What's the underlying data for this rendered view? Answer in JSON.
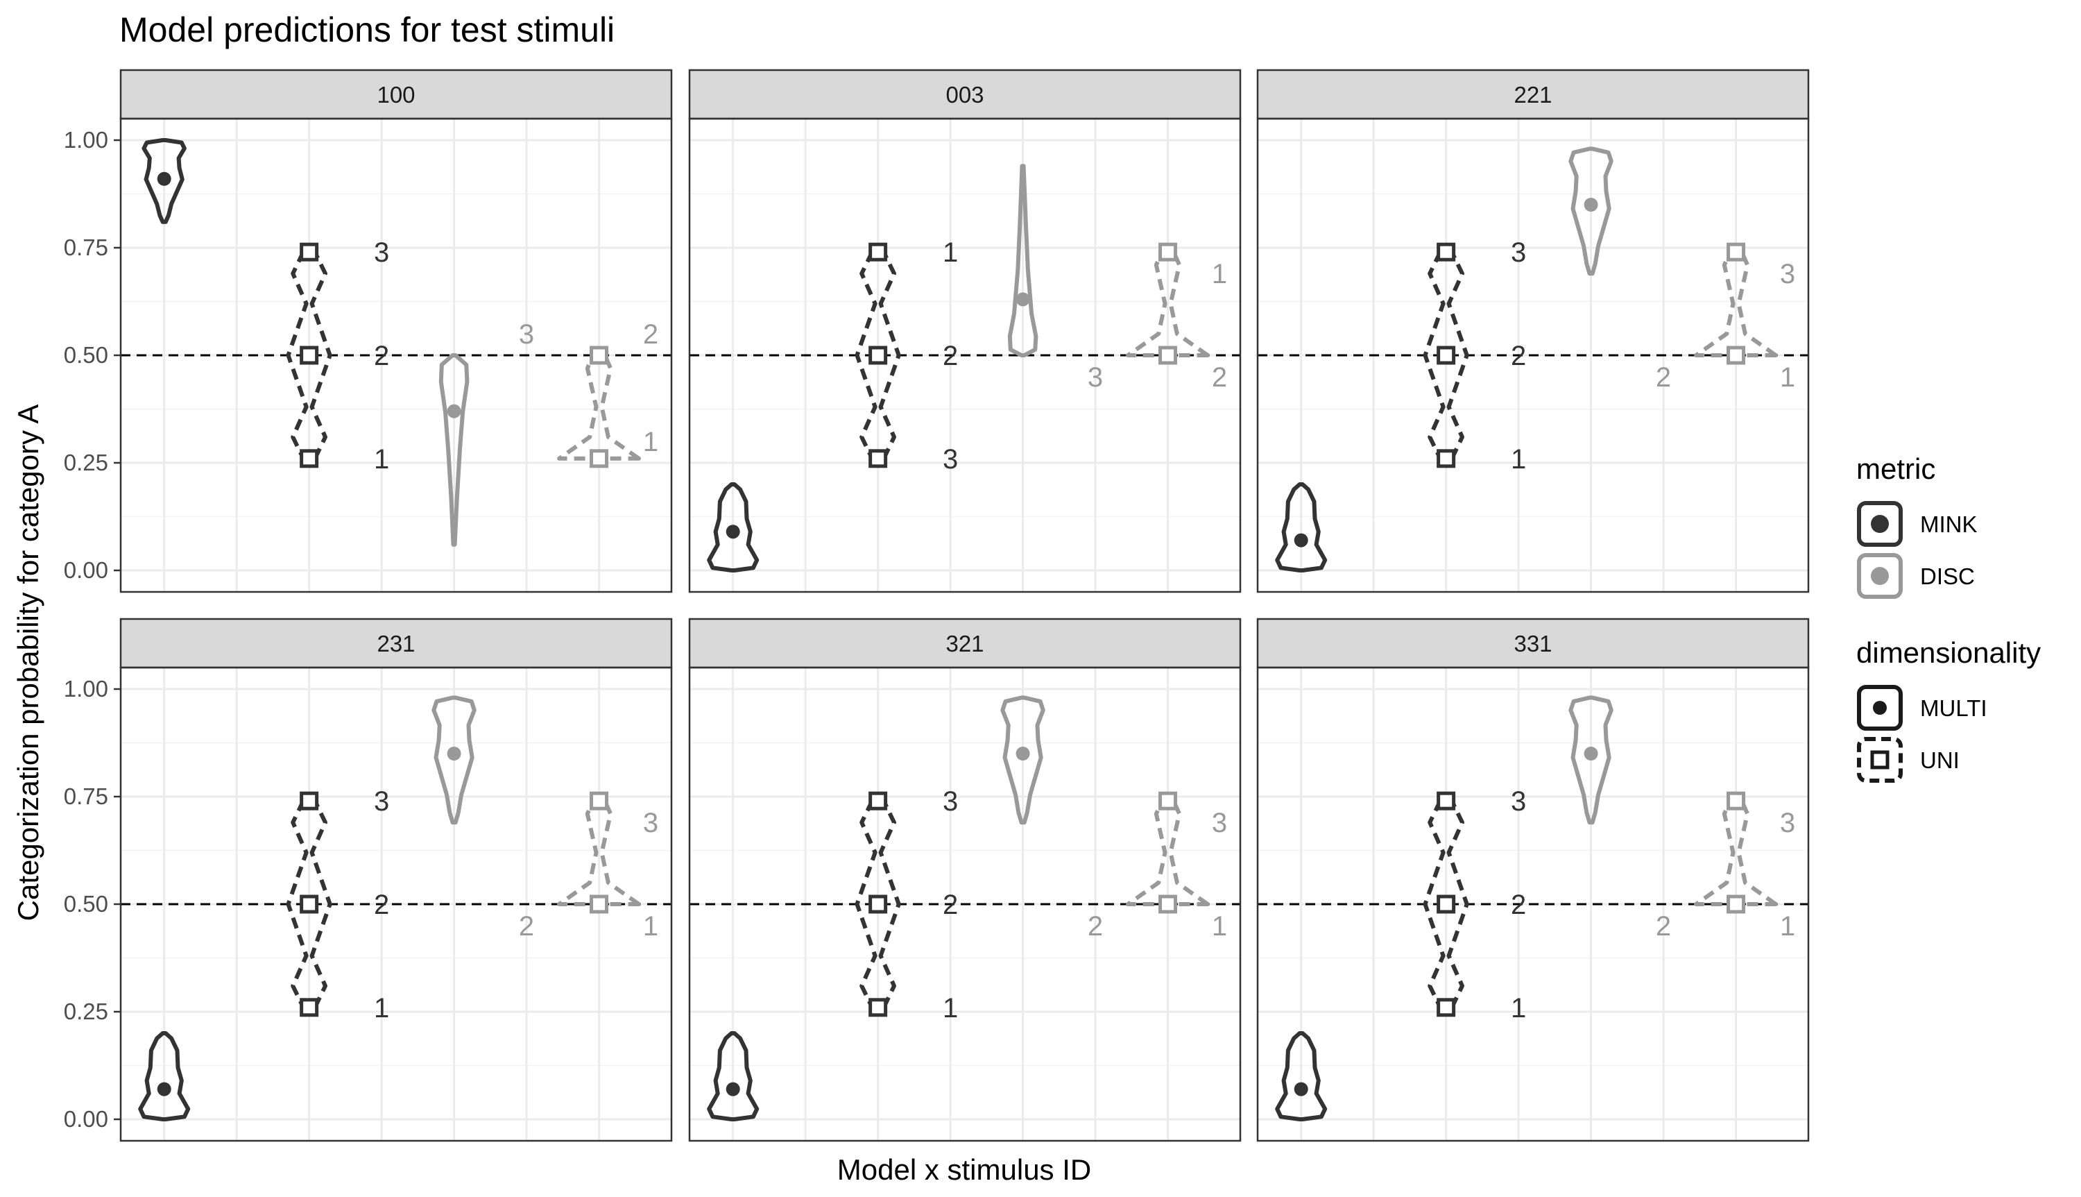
{
  "chart_data": {
    "type": "violin",
    "title": "Model predictions for test stimuli",
    "xlabel": "Model x stimulus ID",
    "ylabel": "Categorization probability for category A",
    "ylim": [
      -0.05,
      1.05
    ],
    "y_ticks": [
      0,
      0.25,
      0.5,
      0.75,
      1
    ],
    "y_tick_labels": [
      "0.00",
      "0.25",
      "0.50",
      "0.75",
      "1.00"
    ],
    "hline": 0.5,
    "grid": true,
    "legend_position": "right",
    "colors": {
      "MINK": "#333333",
      "DISC": "#999999"
    },
    "legends": [
      {
        "title": "metric",
        "entries": [
          {
            "label": "MINK",
            "color": "#333333"
          },
          {
            "label": "DISC",
            "color": "#999999"
          }
        ]
      },
      {
        "title": "dimensionality",
        "entries": [
          {
            "label": "MULTI",
            "linetype": "solid",
            "shape": "filled-circle"
          },
          {
            "label": "UNI",
            "linetype": "dashed",
            "shape": "open-square"
          }
        ]
      }
    ],
    "panels": [
      {
        "id": "100",
        "groups": [
          {
            "metric": "MINK",
            "dim": "MULTI",
            "x": 1,
            "mean": 0.91,
            "range": [
              0.81,
              1.0
            ],
            "shape": "top"
          },
          {
            "metric": "MINK",
            "dim": "UNI",
            "x": 3,
            "points": [
              0.26,
              0.5,
              0.74
            ],
            "labels": [
              "1",
              "2",
              "3"
            ]
          },
          {
            "metric": "DISC",
            "dim": "MULTI",
            "x": 5,
            "mean": 0.37,
            "range": [
              0.06,
              0.5
            ],
            "shape": "long-down"
          },
          {
            "metric": "DISC",
            "dim": "UNI",
            "x": 7,
            "points": [
              0.26,
              0.5
            ],
            "labels": [
              "1",
              "2",
              "3"
            ]
          }
        ]
      },
      {
        "id": "003",
        "groups": [
          {
            "metric": "MINK",
            "dim": "MULTI",
            "x": 1,
            "mean": 0.09,
            "range": [
              0.0,
              0.2
            ],
            "shape": "bottom"
          },
          {
            "metric": "MINK",
            "dim": "UNI",
            "x": 3,
            "points": [
              0.26,
              0.5,
              0.74
            ],
            "labels": [
              "3",
              "2",
              "1"
            ]
          },
          {
            "metric": "DISC",
            "dim": "MULTI",
            "x": 5,
            "mean": 0.63,
            "range": [
              0.5,
              0.94
            ],
            "shape": "long-up"
          },
          {
            "metric": "DISC",
            "dim": "UNI",
            "x": 7,
            "points": [
              0.5,
              0.74
            ],
            "labels": [
              "3",
              "2",
              "1"
            ]
          }
        ]
      },
      {
        "id": "221",
        "groups": [
          {
            "metric": "MINK",
            "dim": "MULTI",
            "x": 1,
            "mean": 0.07,
            "range": [
              0.0,
              0.2
            ],
            "shape": "bottom"
          },
          {
            "metric": "MINK",
            "dim": "UNI",
            "x": 3,
            "points": [
              0.26,
              0.5,
              0.74
            ],
            "labels": [
              "1",
              "2",
              "3"
            ]
          },
          {
            "metric": "DISC",
            "dim": "MULTI",
            "x": 5,
            "mean": 0.85,
            "range": [
              0.69,
              0.98
            ],
            "shape": "top"
          },
          {
            "metric": "DISC",
            "dim": "UNI",
            "x": 7,
            "points": [
              0.5,
              0.74
            ],
            "labels": [
              "2",
              "1",
              "3"
            ]
          }
        ]
      },
      {
        "id": "231",
        "groups": [
          {
            "metric": "MINK",
            "dim": "MULTI",
            "x": 1,
            "mean": 0.07,
            "range": [
              0.0,
              0.2
            ],
            "shape": "bottom"
          },
          {
            "metric": "MINK",
            "dim": "UNI",
            "x": 3,
            "points": [
              0.26,
              0.5,
              0.74
            ],
            "labels": [
              "1",
              "2",
              "3"
            ]
          },
          {
            "metric": "DISC",
            "dim": "MULTI",
            "x": 5,
            "mean": 0.85,
            "range": [
              0.69,
              0.98
            ],
            "shape": "top"
          },
          {
            "metric": "DISC",
            "dim": "UNI",
            "x": 7,
            "points": [
              0.5,
              0.74
            ],
            "labels": [
              "2",
              "1",
              "3"
            ]
          }
        ]
      },
      {
        "id": "321",
        "groups": [
          {
            "metric": "MINK",
            "dim": "MULTI",
            "x": 1,
            "mean": 0.07,
            "range": [
              0.0,
              0.2
            ],
            "shape": "bottom"
          },
          {
            "metric": "MINK",
            "dim": "UNI",
            "x": 3,
            "points": [
              0.26,
              0.5,
              0.74
            ],
            "labels": [
              "1",
              "2",
              "3"
            ]
          },
          {
            "metric": "DISC",
            "dim": "MULTI",
            "x": 5,
            "mean": 0.85,
            "range": [
              0.69,
              0.98
            ],
            "shape": "top"
          },
          {
            "metric": "DISC",
            "dim": "UNI",
            "x": 7,
            "points": [
              0.5,
              0.74
            ],
            "labels": [
              "2",
              "1",
              "3"
            ]
          }
        ]
      },
      {
        "id": "331",
        "groups": [
          {
            "metric": "MINK",
            "dim": "MULTI",
            "x": 1,
            "mean": 0.07,
            "range": [
              0.0,
              0.2
            ],
            "shape": "bottom"
          },
          {
            "metric": "MINK",
            "dim": "UNI",
            "x": 3,
            "points": [
              0.26,
              0.5,
              0.74
            ],
            "labels": [
              "1",
              "2",
              "3"
            ]
          },
          {
            "metric": "DISC",
            "dim": "MULTI",
            "x": 5,
            "mean": 0.85,
            "range": [
              0.69,
              0.98
            ],
            "shape": "top"
          },
          {
            "metric": "DISC",
            "dim": "UNI",
            "x": 7,
            "points": [
              0.5,
              0.74
            ],
            "labels": [
              "2",
              "1",
              "3"
            ]
          }
        ]
      }
    ]
  }
}
